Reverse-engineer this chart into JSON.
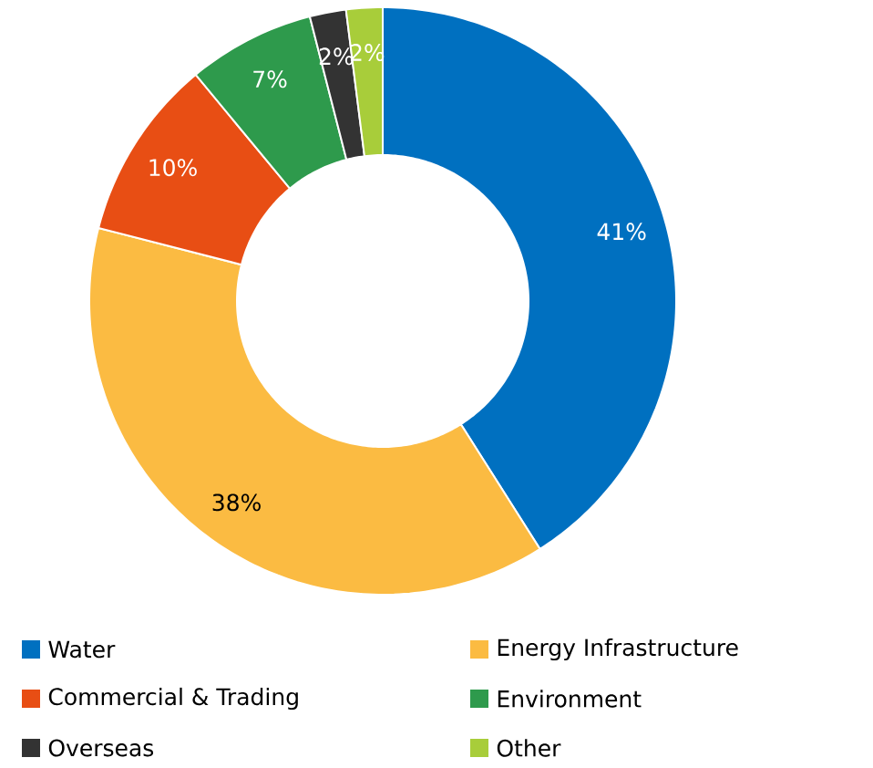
{
  "chart_data": {
    "type": "donut",
    "categories": [
      "Water",
      "Energy Infrastructure",
      "Commercial & Trading",
      "Environment",
      "Overseas",
      "Other"
    ],
    "values": [
      41,
      38,
      10,
      7,
      2,
      2
    ],
    "colors": [
      "#0070c0",
      "#fbbb42",
      "#e84e14",
      "#2e9a4c",
      "#333333",
      "#a8cd3a"
    ],
    "value_labels": [
      "41%",
      "38%",
      "10%",
      "7%",
      "2%",
      "2%"
    ],
    "legend": "bottom"
  }
}
